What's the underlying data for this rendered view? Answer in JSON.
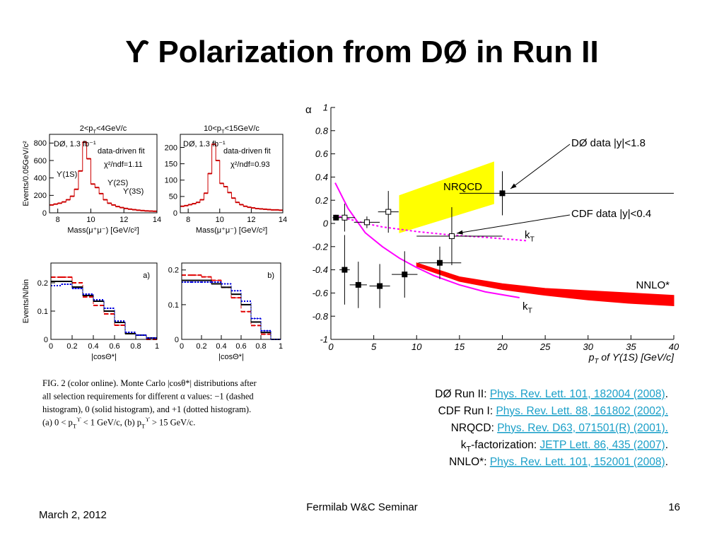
{
  "title": "ϒ Polarization from DØ in Run II",
  "chart_data": [
    {
      "type": "scatter",
      "xlim": [
        0,
        40
      ],
      "ylim": [
        -1,
        1
      ],
      "xticks": [
        0,
        5,
        10,
        15,
        20,
        25,
        30,
        35,
        40
      ],
      "yticks": [
        -1,
        -0.8,
        -0.6,
        -0.4,
        -0.2,
        0,
        0.2,
        0.4,
        0.6,
        0.8,
        1
      ],
      "ylabel": "α",
      "xlabel": [
        {
          "text": "p"
        },
        {
          "text": "T",
          "style": "sub"
        },
        {
          "text": " of ϒ(1S) [GeV/c]"
        }
      ],
      "bands": [
        {
          "name": "NRQCD",
          "color": "#ffff00",
          "x": [
            8,
            19
          ],
          "lower": [
            -0.08,
            0.17
          ],
          "upper": [
            0.24,
            0.53
          ]
        },
        {
          "name": "NNLO*",
          "color": "#ff0000",
          "x": [
            10,
            15,
            20,
            25,
            30,
            35,
            40
          ],
          "lower": [
            -0.37,
            -0.5,
            -0.57,
            -0.62,
            -0.66,
            -0.69,
            -0.71
          ],
          "upper": [
            -0.34,
            -0.46,
            -0.52,
            -0.56,
            -0.58,
            -0.6,
            -0.62
          ]
        }
      ],
      "curves": [
        {
          "name": [
            {
              "text": "k"
            },
            {
              "text": "T",
              "style": "sub"
            }
          ],
          "color": "#ff00ff",
          "style": "dotted",
          "x": [
            0.5,
            2,
            4,
            6,
            8,
            10,
            14,
            18,
            23
          ],
          "values": [
            0.07,
            0.04,
            0,
            -0.03,
            -0.05,
            -0.07,
            -0.1,
            -0.12,
            -0.15
          ]
        },
        {
          "name": [
            {
              "text": "k"
            },
            {
              "text": "T",
              "style": "sub"
            }
          ],
          "color": "#ff00ff",
          "style": "solid",
          "x": [
            0.5,
            2,
            4,
            6,
            8,
            10,
            12,
            15,
            18,
            22
          ],
          "values": [
            0.35,
            0.13,
            -0.08,
            -0.2,
            -0.3,
            -0.38,
            -0.45,
            -0.53,
            -0.59,
            -0.64
          ]
        }
      ],
      "series": [
        {
          "name": "DØ data |y|<1.8",
          "marker": "filled",
          "color": "#000000",
          "x": [
            0.6,
            1.6,
            3.2,
            5.7,
            8.6,
            12.7,
            20
          ],
          "values": [
            0.05,
            -0.4,
            -0.53,
            -0.54,
            -0.44,
            -0.34,
            0.26
          ],
          "yerr": [
            0.02,
            0.3,
            0.2,
            0.19,
            0.2,
            0.14,
            0.19
          ],
          "xerr": [
            [
              0.4,
              0.4
            ],
            [
              0.6,
              0.6
            ],
            [
              1,
              1
            ],
            [
              1.2,
              1.2
            ],
            [
              1.5,
              1.5
            ],
            [
              2.5,
              2.5
            ],
            [
              5,
              20
            ]
          ]
        },
        {
          "name": "CDF data |y|<0.4",
          "marker": "open",
          "color": "#000000",
          "x": [
            1.6,
            4.2,
            6.7,
            14.1
          ],
          "values": [
            0.05,
            0.01,
            0.1,
            -0.11
          ],
          "yerr": [
            0.12,
            0.05,
            0.18,
            0.25
          ],
          "xerr": [
            [
              1.2,
              1.2
            ],
            [
              1.5,
              1.5
            ],
            [
              1.2,
              1.2
            ],
            [
              4.1,
              5.9
            ]
          ]
        }
      ]
    },
    {
      "type": "histogram",
      "title": [
        {
          "text": "2<p"
        },
        {
          "text": "T",
          "style": "sub"
        },
        {
          "text": "<4GeV/c"
        }
      ],
      "xlabel": "Mass(μ⁺μ⁻) [GeV/c²]",
      "ylabel": "Events/0.05GeV/c²",
      "xlim": [
        7.5,
        14
      ],
      "ylim": [
        0,
        900
      ],
      "xticks": [
        8,
        10,
        12,
        14
      ],
      "yticks": [
        0,
        200,
        400,
        600,
        800
      ],
      "annotations": [
        "DØ, 1.3 fb⁻¹",
        "data-driven fit",
        "χ²/ndf=1.11",
        "ϒ(1S)",
        "ϒ(2S)",
        "ϒ(3S)"
      ],
      "bins": [
        7.5,
        7.75,
        8,
        8.25,
        8.5,
        8.75,
        9,
        9.25,
        9.5,
        9.75,
        10,
        10.25,
        10.5,
        10.75,
        11,
        11.25,
        11.5,
        11.75,
        12,
        12.25,
        12.5,
        12.75,
        13,
        13.25,
        13.5,
        13.75,
        14
      ],
      "series": [
        {
          "color": "#cc0000",
          "style": "solid",
          "values": [
            90,
            100,
            110,
            125,
            150,
            190,
            270,
            480,
            810,
            620,
            330,
            290,
            220,
            150,
            110,
            90,
            72,
            60,
            50,
            42,
            36,
            30,
            26,
            22,
            20,
            18
          ]
        }
      ]
    },
    {
      "type": "histogram",
      "title": [
        {
          "text": "10<p"
        },
        {
          "text": "T",
          "style": "sub"
        },
        {
          "text": "<15GeV/c"
        }
      ],
      "xlabel": "Mass(μ⁺μ⁻) [GeV/c²]",
      "xlim": [
        7.5,
        14
      ],
      "ylim": [
        0,
        240
      ],
      "xticks": [
        8,
        10,
        12,
        14
      ],
      "yticks": [
        0,
        50,
        100,
        150,
        200
      ],
      "annotations": [
        "DØ, 1.3 fb⁻¹",
        "data-driven fit",
        "χ²/ndf=0.93"
      ],
      "bins": [
        7.5,
        7.75,
        8,
        8.25,
        8.5,
        8.75,
        9,
        9.25,
        9.5,
        9.75,
        10,
        10.25,
        10.5,
        10.75,
        11,
        11.25,
        11.5,
        11.75,
        12,
        12.25,
        12.5,
        12.75,
        13,
        13.25,
        13.5,
        13.75,
        14
      ],
      "series": [
        {
          "color": "#cc0000",
          "style": "solid",
          "values": [
            20,
            22,
            25,
            28,
            32,
            40,
            60,
            120,
            210,
            160,
            90,
            80,
            62,
            45,
            32,
            25,
            20,
            17,
            15,
            13,
            12,
            11,
            10,
            9,
            9,
            8
          ]
        }
      ]
    },
    {
      "type": "histogram",
      "xlabel": "|cosΘ*|",
      "ylabel": "Events/N/bin",
      "xlim": [
        0,
        1
      ],
      "ylim": [
        0,
        0.27
      ],
      "xticks": [
        0,
        0.2,
        0.4,
        0.6,
        0.8,
        1
      ],
      "yticks": [
        0,
        0.1,
        0.2
      ],
      "annotations": [
        "a)"
      ],
      "bins": [
        0,
        0.1,
        0.2,
        0.3,
        0.4,
        0.5,
        0.6,
        0.7,
        0.8,
        0.9,
        1
      ],
      "series": [
        {
          "color": "#e00000",
          "style": "dashed",
          "values": [
            0.22,
            0.22,
            0.2,
            0.15,
            0.12,
            0.09,
            0.05,
            0.02,
            0.015,
            0
          ]
        },
        {
          "color": "#000000",
          "style": "solid",
          "values": [
            0.205,
            0.205,
            0.185,
            0.155,
            0.135,
            0.1,
            0.06,
            0.02,
            0.015,
            0.005
          ]
        },
        {
          "color": "#0000e0",
          "style": "dotted",
          "values": [
            0.19,
            0.195,
            0.18,
            0.16,
            0.14,
            0.11,
            0.065,
            0.025,
            0.015,
            0.005
          ]
        }
      ]
    },
    {
      "type": "histogram",
      "xlabel": "|cosΘ*|",
      "xlim": [
        0,
        1
      ],
      "ylim": [
        0,
        0.22
      ],
      "xticks": [
        0,
        0.2,
        0.4,
        0.6,
        0.8,
        1
      ],
      "yticks": [
        0,
        0.1,
        0.2
      ],
      "annotations": [
        "b)"
      ],
      "bins": [
        0,
        0.1,
        0.2,
        0.3,
        0.4,
        0.5,
        0.6,
        0.7,
        0.8,
        0.9,
        1
      ],
      "series": [
        {
          "color": "#e00000",
          "style": "dashed",
          "values": [
            0.185,
            0.185,
            0.18,
            0.17,
            0.15,
            0.12,
            0.08,
            0.04,
            0.015,
            0
          ]
        },
        {
          "color": "#000000",
          "style": "solid",
          "values": [
            0.17,
            0.17,
            0.17,
            0.16,
            0.15,
            0.13,
            0.1,
            0.05,
            0.02,
            0
          ]
        },
        {
          "color": "#0000e0",
          "style": "dotted",
          "values": [
            0.165,
            0.165,
            0.165,
            0.165,
            0.16,
            0.14,
            0.11,
            0.06,
            0.025,
            0
          ]
        }
      ]
    }
  ],
  "caption": [
    "FIG. 2 (color online).   Monte Carlo |cosθ*| distributions after",
    "all selection requirements for different α values: −1 (dashed",
    "histogram), 0 (solid histogram), and +1 (dotted histogram).",
    [
      {
        "text": "(a) 0 < p"
      },
      {
        "text": "T",
        "style": "sub"
      },
      {
        "text": "ϒ",
        "style": "sup"
      },
      {
        "text": " < 1 GeV/c, (b) p"
      },
      {
        "text": "T",
        "style": "sub"
      },
      {
        "text": "ϒ",
        "style": "sup"
      },
      {
        "text": " > 15 GeV/c."
      }
    ]
  ],
  "references": [
    {
      "label": "DØ Run II: ",
      "link": "Phys. Rev. Lett. 101, 182004 (2008)",
      "end": "."
    },
    {
      "label": "CDF Run I:  ",
      "link": "Phys. Rev. Lett. 88, 161802 (2002)."
    },
    {
      "label": "NRQCD:  ",
      "link": "Phys. Rev. D63, 071501(R) (2001)."
    },
    {
      "label": [
        {
          "text": "k"
        },
        {
          "text": "T",
          "style": "sub"
        },
        {
          "text": "-factorization:  "
        }
      ],
      "link": "JETP Lett. 86, 435 (2007)",
      "end": "."
    },
    {
      "label": "NNLO*: ",
      "link": "Phys. Rev. Lett. 101, 152001 (2008)",
      "end": "."
    }
  ],
  "footer": {
    "date": "March 2, 2012",
    "event": "Fermilab W&C Seminar",
    "page": "16"
  }
}
